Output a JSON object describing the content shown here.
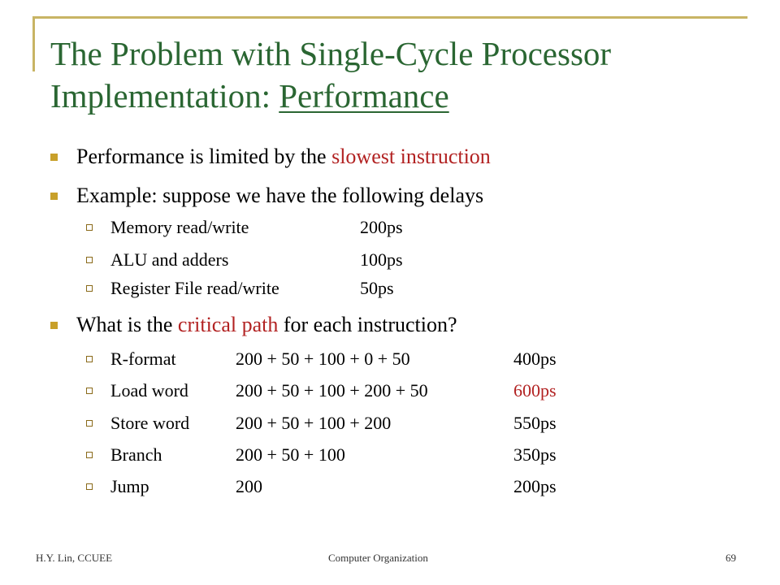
{
  "slide": {
    "title_line1": "The Problem with Single-Cycle Processor",
    "title_line2_prefix": "Implementation: ",
    "title_line2_underlined": "Performance",
    "bullet1": {
      "text_before": "Performance is limited by the ",
      "highlight": "slowest instruction"
    },
    "bullet2": {
      "text": "Example: suppose we have the following delays"
    },
    "delays": [
      {
        "label": "Memory read/write",
        "value": "200ps"
      },
      {
        "label": "ALU and adders",
        "value": "100ps"
      },
      {
        "label": "Register File read/write",
        "value": "50ps"
      }
    ],
    "bullet3": {
      "text_before": "What is the ",
      "highlight": "critical path",
      "text_after": " for each instruction?"
    },
    "paths": [
      {
        "instruction": "R-format",
        "sum": "200 + 50 + 100 + 0 + 50",
        "total": "400ps"
      },
      {
        "instruction": "Load word",
        "sum": "200 + 50 + 100 + 200 + 50",
        "total": "600ps"
      },
      {
        "instruction": "Store word",
        "sum": "200 + 50 + 100 + 200",
        "total": "550ps"
      },
      {
        "instruction": "Branch",
        "sum": "200 + 50 + 100",
        "total": "350ps"
      },
      {
        "instruction": "Jump",
        "sum": "200",
        "total": "200ps"
      }
    ],
    "highlight_color": "#b22222",
    "title_color": "#2a6632",
    "accent_color": "#c8b464"
  },
  "footer": {
    "left": "H.Y. Lin, CCUEE",
    "center": "Computer Organization",
    "right": "69"
  }
}
